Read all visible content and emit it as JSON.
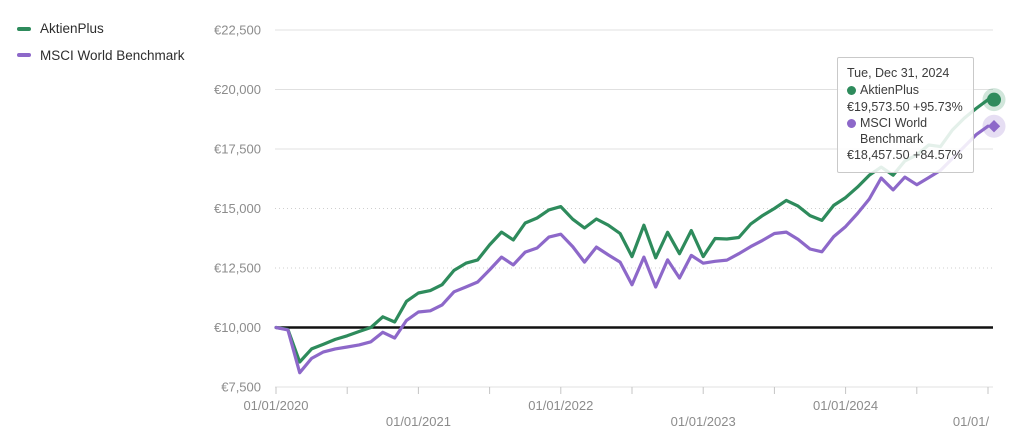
{
  "legend": {
    "items": [
      {
        "label": "AktienPlus",
        "color": "#2e8b5c"
      },
      {
        "label": "MSCI World Benchmark",
        "color": "#8d68c9"
      }
    ]
  },
  "tooltip": {
    "date": "Tue, Dec 31, 2024",
    "entries": [
      {
        "name": "AktienPlus",
        "value": "€19,573.50",
        "change": "+95.73%",
        "color": "#2e8b5c"
      },
      {
        "name": "MSCI World Benchmark",
        "value": "€18,457.50",
        "change": "+84.57%",
        "color": "#8d68c9"
      }
    ]
  },
  "chart_data": {
    "type": "line",
    "title": "",
    "xlabel": "",
    "ylabel": "",
    "grid": true,
    "legend_position": "top-left",
    "ylim": [
      7500,
      22500
    ],
    "y_ticks": [
      {
        "label": "€22,500",
        "value": 22500
      },
      {
        "label": "€20,000",
        "value": 20000
      },
      {
        "label": "€17,500",
        "value": 17500
      },
      {
        "label": "€15,000",
        "value": 15000
      },
      {
        "label": "€12,500",
        "value": 12500
      },
      {
        "label": "€10,000",
        "value": 10000
      },
      {
        "label": "€7,500",
        "value": 7500
      }
    ],
    "baseline_value": 10000,
    "baseline_color": "#111111",
    "x_tick_count": 11,
    "x_tick_interval": "6 months",
    "x_range": [
      "01/01/2020",
      "12/31/2024"
    ],
    "x_labels": [
      {
        "tick": 0,
        "label": "01/01/2020",
        "row": 0
      },
      {
        "tick": 2,
        "label": "01/01/2021",
        "row": 1
      },
      {
        "tick": 4,
        "label": "01/01/2022",
        "row": 0
      },
      {
        "tick": 6,
        "label": "01/01/2023",
        "row": 1
      },
      {
        "tick": 8,
        "label": "01/01/2024",
        "row": 0
      },
      {
        "tick": 10,
        "label": "01/01/",
        "row": 1
      }
    ],
    "point_interval": "monthly",
    "series": [
      {
        "name": "AktienPlus",
        "color": "#2e8b5c",
        "marker": "circle",
        "final_value": 19573.5,
        "final_change_pct": 95.73,
        "values": [
          10000,
          9920,
          8550,
          9100,
          9300,
          9500,
          9650,
          9830,
          10000,
          10450,
          10230,
          11100,
          11450,
          11550,
          11800,
          12400,
          12700,
          12840,
          13470,
          14010,
          13680,
          14390,
          14600,
          14940,
          15080,
          14550,
          14180,
          14560,
          14300,
          13950,
          12980,
          14300,
          12930,
          14000,
          13100,
          14075,
          12980,
          13740,
          13720,
          13780,
          14350,
          14700,
          15000,
          15340,
          15100,
          14700,
          14500,
          15130,
          15460,
          15900,
          16400,
          16740,
          16400,
          17000,
          17250,
          17670,
          17600,
          18300,
          18800,
          19200,
          19573.5
        ]
      },
      {
        "name": "MSCI World Benchmark",
        "color": "#8d68c9",
        "marker": "diamond",
        "final_value": 18457.5,
        "final_change_pct": 84.57,
        "values": [
          10000,
          9900,
          8100,
          8700,
          8975,
          9100,
          9180,
          9270,
          9400,
          9800,
          9560,
          10300,
          10650,
          10700,
          10950,
          11500,
          11700,
          11910,
          12420,
          12960,
          12630,
          13170,
          13340,
          13800,
          13920,
          13400,
          12750,
          13380,
          13050,
          12750,
          11800,
          12960,
          11700,
          12840,
          12080,
          13030,
          12700,
          12780,
          12830,
          13100,
          13400,
          13660,
          13950,
          14010,
          13700,
          13300,
          13180,
          13820,
          14240,
          14790,
          15400,
          16280,
          15780,
          16320,
          16000,
          16300,
          16600,
          17100,
          17600,
          18100,
          18457.5
        ]
      }
    ]
  }
}
